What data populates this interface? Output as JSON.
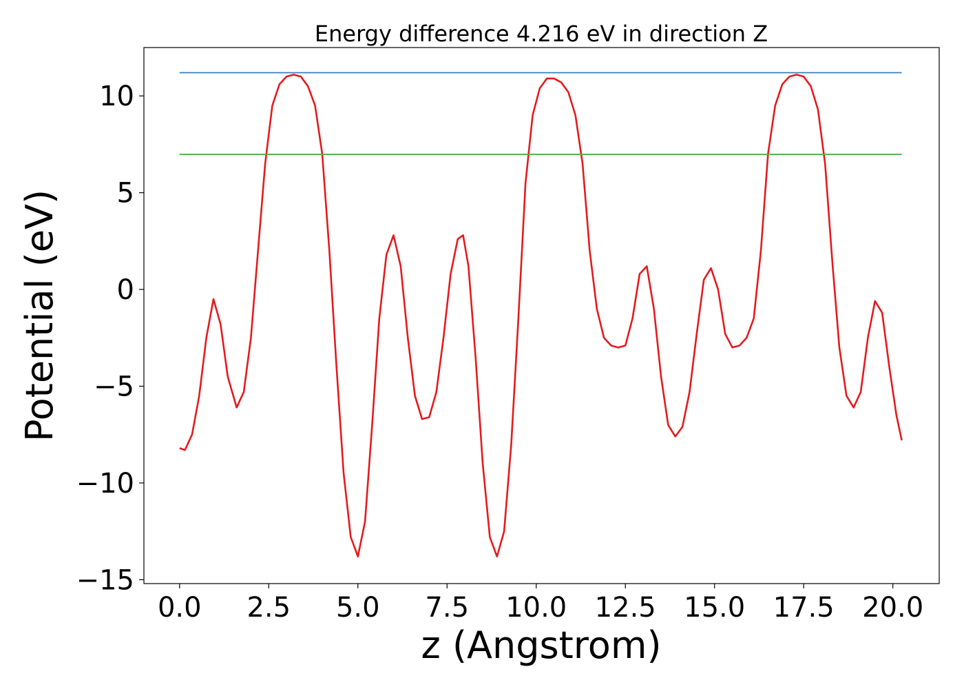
{
  "chart_data": {
    "type": "line",
    "title": "Energy difference 4.216 eV in direction Z",
    "xlabel": "z (Angstrom)",
    "ylabel": "Potential (eV)",
    "xlim": [
      -1.0,
      21.3
    ],
    "ylim": [
      -15.2,
      12.5
    ],
    "xticks": [
      0.0,
      2.5,
      5.0,
      7.5,
      10.0,
      12.5,
      15.0,
      17.5,
      20.0
    ],
    "xtick_labels": [
      "0.0",
      "2.5",
      "5.0",
      "7.5",
      "10.0",
      "12.5",
      "15.0",
      "17.5",
      "20.0"
    ],
    "yticks": [
      -15,
      -10,
      -5,
      0,
      5,
      10
    ],
    "ytick_labels": [
      "−15",
      "−10",
      "−5",
      "0",
      "5",
      "10"
    ],
    "grid": false,
    "series": [
      {
        "color": "#e41a1c",
        "x": [
          0.0,
          0.15,
          0.35,
          0.55,
          0.75,
          0.95,
          1.15,
          1.35,
          1.6,
          1.8,
          2.0,
          2.2,
          2.4,
          2.6,
          2.8,
          3.0,
          3.2,
          3.4,
          3.6,
          3.8,
          4.0,
          4.2,
          4.4,
          4.6,
          4.8,
          5.0,
          5.2,
          5.4,
          5.6,
          5.8,
          6.0,
          6.2,
          6.4,
          6.6,
          6.8,
          7.0,
          7.2,
          7.4,
          7.6,
          7.8,
          7.95,
          8.1,
          8.3,
          8.5,
          8.7,
          8.9,
          9.1,
          9.3,
          9.5,
          9.7,
          9.9,
          10.1,
          10.3,
          10.5,
          10.7,
          10.9,
          11.1,
          11.3,
          11.5,
          11.7,
          11.9,
          12.1,
          12.3,
          12.5,
          12.7,
          12.9,
          13.1,
          13.3,
          13.5,
          13.7,
          13.9,
          14.1,
          14.3,
          14.5,
          14.7,
          14.9,
          15.1,
          15.3,
          15.5,
          15.7,
          15.9,
          16.1,
          16.3,
          16.5,
          16.7,
          16.9,
          17.1,
          17.3,
          17.5,
          17.7,
          17.9,
          18.1,
          18.3,
          18.5,
          18.7,
          18.9,
          19.1,
          19.3,
          19.5,
          19.7,
          19.9,
          20.1,
          20.25
        ],
        "y": [
          -8.2,
          -8.3,
          -7.5,
          -5.5,
          -2.5,
          -0.5,
          -1.8,
          -4.5,
          -6.1,
          -5.3,
          -2.5,
          2.0,
          6.5,
          9.5,
          10.6,
          11.0,
          11.1,
          11.0,
          10.5,
          9.5,
          7.0,
          2.0,
          -4.0,
          -9.5,
          -12.8,
          -13.8,
          -12.0,
          -7.0,
          -1.5,
          1.8,
          2.8,
          1.2,
          -2.5,
          -5.5,
          -6.7,
          -6.6,
          -5.3,
          -2.5,
          0.8,
          2.6,
          2.8,
          1.2,
          -3.5,
          -9.0,
          -12.8,
          -13.8,
          -12.5,
          -8.0,
          -1.5,
          5.5,
          9.0,
          10.4,
          10.9,
          10.9,
          10.7,
          10.2,
          9.0,
          6.5,
          2.0,
          -1.0,
          -2.5,
          -2.9,
          -3.0,
          -2.9,
          -1.5,
          0.8,
          1.2,
          -1.0,
          -4.5,
          -7.0,
          -7.6,
          -7.1,
          -5.3,
          -2.3,
          0.5,
          1.1,
          0.0,
          -2.3,
          -3.0,
          -2.9,
          -2.5,
          -1.5,
          2.0,
          7.0,
          9.5,
          10.6,
          11.0,
          11.1,
          11.0,
          10.5,
          9.3,
          6.5,
          1.5,
          -3.0,
          -5.5,
          -6.1,
          -5.3,
          -2.5,
          -0.6,
          -1.2,
          -4.0,
          -6.5,
          -7.8
        ]
      },
      {
        "color": "#377eb8",
        "x": [
          0.0,
          20.25
        ],
        "y": [
          11.2,
          11.2
        ]
      },
      {
        "color": "#4daf4a",
        "x": [
          0.0,
          20.25
        ],
        "y": [
          6.98,
          6.98
        ]
      }
    ]
  }
}
